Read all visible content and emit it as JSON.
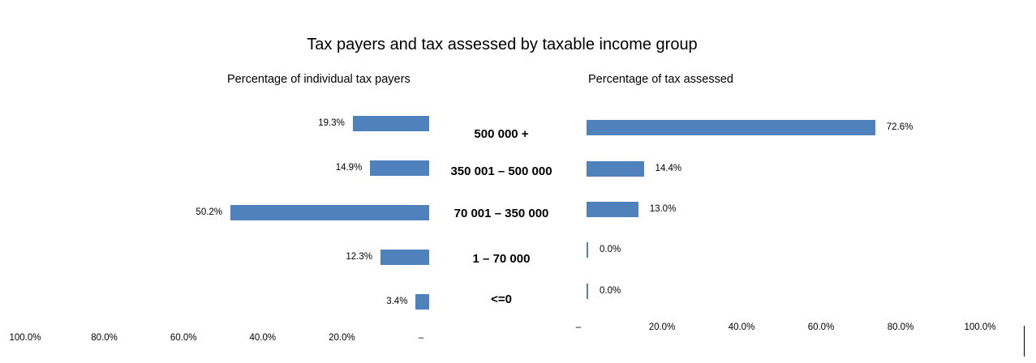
{
  "chart_data": {
    "type": "bar",
    "orientation": "horizontal",
    "title": "Tax payers and tax assessed by taxable income group",
    "categories": [
      "500 000 +",
      "350 001 – 500 000",
      "70 001 – 350 000",
      "1 – 70 000",
      "<=0"
    ],
    "series": [
      {
        "name": "Percentage of individual tax payers",
        "values": [
          19.3,
          14.9,
          50.2,
          12.3,
          3.4
        ],
        "labels": [
          "19.3%",
          "14.9%",
          "50.2%",
          "12.3%",
          "3.4%"
        ],
        "direction": "left"
      },
      {
        "name": "Percentage of tax assessed",
        "values": [
          72.6,
          14.4,
          13.0,
          0.0,
          0.0
        ],
        "labels": [
          "72.6%",
          "14.4%",
          "13.0%",
          "0.0%",
          "0.0%"
        ],
        "direction": "right"
      }
    ],
    "left_axis_ticks": [
      "100.0%",
      "80.0%",
      "60.0%",
      "40.0%",
      "20.0%",
      "–"
    ],
    "right_axis_ticks": [
      "–",
      "20.0%",
      "40.0%",
      "60.0%",
      "80.0%",
      "100.0%"
    ],
    "xlim": [
      0,
      100
    ],
    "bar_color": "#4f81bd",
    "grid": false
  }
}
